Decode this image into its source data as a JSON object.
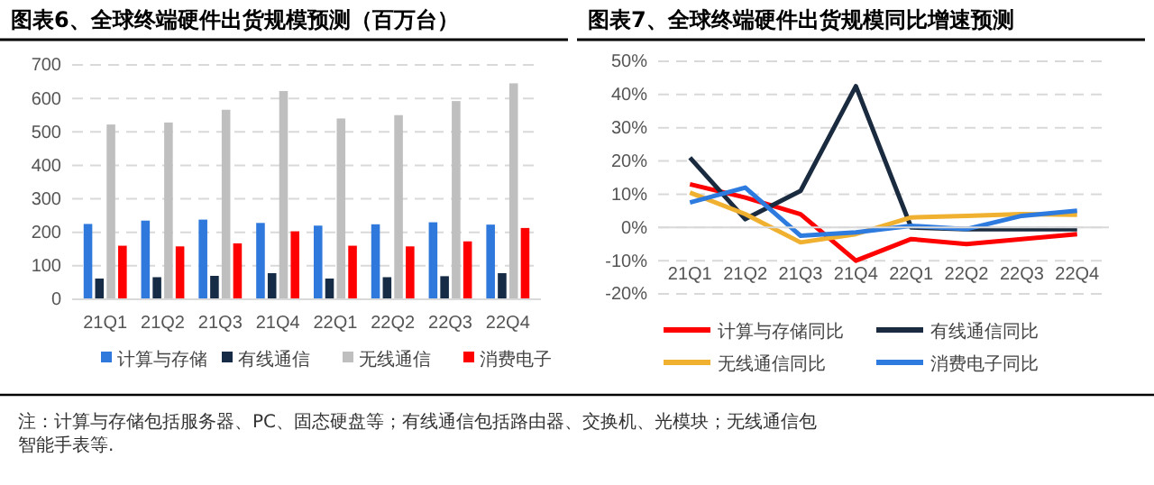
{
  "chart_data": [
    {
      "type": "bar",
      "title": "图表6、全球终端硬件出货规模预测（百万台）",
      "categories": [
        "21Q1",
        "21Q2",
        "21Q3",
        "21Q4",
        "22Q1",
        "22Q2",
        "22Q3",
        "22Q4"
      ],
      "series": [
        {
          "name": "计算与存储",
          "color": "#2f78dc",
          "values": [
            225,
            235,
            238,
            228,
            220,
            224,
            230,
            223
          ]
        },
        {
          "name": "有线通信",
          "color": "#162c46",
          "values": [
            62,
            66,
            70,
            78,
            62,
            66,
            69,
            78
          ]
        },
        {
          "name": "无线通信",
          "color": "#bfbfbf",
          "values": [
            522,
            528,
            566,
            622,
            540,
            550,
            592,
            645
          ]
        },
        {
          "name": "消费电子",
          "color": "#ff0000",
          "values": [
            160,
            158,
            167,
            203,
            160,
            158,
            173,
            213
          ]
        }
      ],
      "ylim": [
        0,
        700
      ],
      "yticks": [
        0,
        100,
        200,
        300,
        400,
        500,
        600,
        700
      ],
      "grid": "y",
      "legend": "bottom",
      "annotations": [
        "注：计算与存储包括服务器、PC、固态硬盘等；有线通信包括路由器、交换机、光模块；无线通信包",
        "智能手表等."
      ]
    },
    {
      "type": "line",
      "title": "图表7、全球终端硬件出货规模同比增速预测",
      "categories": [
        "21Q1",
        "21Q2",
        "21Q3",
        "21Q4",
        "22Q1",
        "22Q2",
        "22Q3",
        "22Q4"
      ],
      "series": [
        {
          "name": "计算与存储同比",
          "color": "#ff0000",
          "values": [
            13,
            9,
            4,
            -10,
            -3.5,
            -5,
            -3.5,
            -2
          ]
        },
        {
          "name": "有线通信同比",
          "color": "#1a2b40",
          "values": [
            21,
            2.5,
            11,
            42.5,
            0,
            -0.5,
            -0.5,
            -0.5
          ]
        },
        {
          "name": "无线通信同比",
          "color": "#f0b030",
          "values": [
            10.5,
            4,
            -4.5,
            -2,
            3,
            3.5,
            4,
            3.8
          ]
        },
        {
          "name": "消费电子同比",
          "color": "#2e7be0",
          "values": [
            7.5,
            12,
            -2.5,
            -1.5,
            0.5,
            -0.5,
            3.5,
            5
          ]
        }
      ],
      "ylim": [
        -20,
        50
      ],
      "yticks": [
        {
          "value": -20,
          "label": "-20%"
        },
        {
          "value": -10,
          "label": "-10%"
        },
        {
          "value": 0,
          "label": "0%"
        },
        {
          "value": 10,
          "label": "10%"
        },
        {
          "value": 20,
          "label": "20%"
        },
        {
          "value": 30,
          "label": "30%"
        },
        {
          "value": 40,
          "label": "40%"
        },
        {
          "value": 50,
          "label": "50%"
        }
      ],
      "grid": "y",
      "legend": "bottom",
      "marker": "none",
      "line_style": "solid"
    }
  ]
}
